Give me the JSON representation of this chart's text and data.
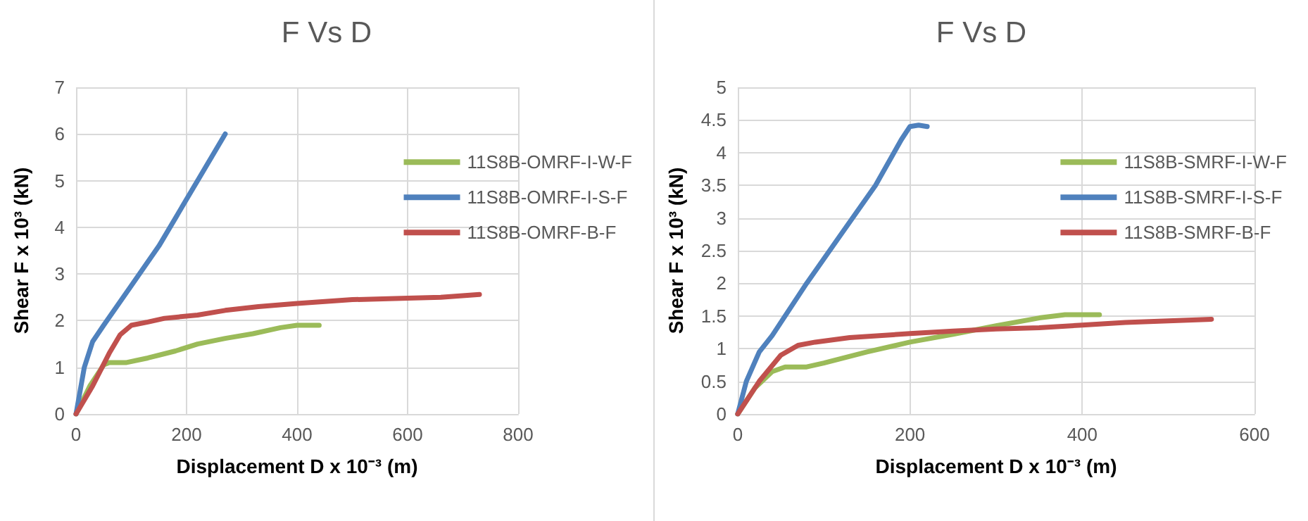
{
  "chart_data": [
    {
      "type": "line",
      "title": "F Vs D",
      "xlabel": "Displacement D x 10⁻³ (m)",
      "ylabel": "Shear F x 10³ (kN)",
      "xlim": [
        0,
        800
      ],
      "xticks": [
        0,
        200,
        400,
        600,
        800
      ],
      "ylim": [
        0,
        7
      ],
      "yticks": [
        0,
        1,
        2,
        3,
        4,
        5,
        6,
        7
      ],
      "grid": true,
      "legend": "right",
      "marker": "none",
      "line_style": "solid",
      "series": [
        {
          "name": "11S8B-OMRF-I-W-F",
          "color": "#9bbb59",
          "x": [
            0,
            25,
            50,
            60,
            90,
            130,
            180,
            220,
            270,
            320,
            370,
            400,
            440
          ],
          "values": [
            0,
            0.6,
            1.05,
            1.1,
            1.1,
            1.2,
            1.35,
            1.5,
            1.62,
            1.72,
            1.85,
            1.9,
            1.9
          ]
        },
        {
          "name": "11S8B-OMRF-I-S-F",
          "color": "#4f81bd",
          "x": [
            0,
            15,
            30,
            50,
            100,
            150,
            200,
            270
          ],
          "values": [
            0,
            1,
            1.55,
            1.9,
            2.75,
            3.6,
            4.6,
            6
          ]
        },
        {
          "name": "11S8B-OMRF-B-F",
          "color": "#c0504d",
          "x": [
            0,
            30,
            60,
            80,
            100,
            130,
            160,
            220,
            270,
            330,
            400,
            500,
            600,
            660,
            730
          ],
          "values": [
            0,
            0.6,
            1.3,
            1.7,
            1.9,
            1.97,
            2.05,
            2.12,
            2.22,
            2.3,
            2.37,
            2.45,
            2.48,
            2.5,
            2.56
          ]
        }
      ]
    },
    {
      "type": "line",
      "title": "F Vs D",
      "xlabel": "Displacement D x 10⁻³ (m)",
      "ylabel": "Shear F x 10³ (kN)",
      "xlim": [
        0,
        600
      ],
      "xticks": [
        0,
        200,
        400,
        600
      ],
      "ylim": [
        0,
        5
      ],
      "yticks": [
        0,
        0.5,
        1,
        1.5,
        2,
        2.5,
        3,
        3.5,
        4,
        4.5,
        5
      ],
      "grid": true,
      "legend": "right",
      "marker": "none",
      "line_style": "solid",
      "series": [
        {
          "name": "11S8B-SMRF-I-W-F",
          "color": "#9bbb59",
          "x": [
            0,
            20,
            40,
            55,
            80,
            100,
            150,
            200,
            250,
            300,
            350,
            380,
            420
          ],
          "values": [
            0,
            0.4,
            0.65,
            0.72,
            0.72,
            0.78,
            0.95,
            1.1,
            1.22,
            1.35,
            1.47,
            1.52,
            1.52
          ]
        },
        {
          "name": "11S8B-SMRF-I-S-F",
          "color": "#4f81bd",
          "x": [
            0,
            10,
            25,
            40,
            80,
            120,
            160,
            190,
            200,
            210,
            220
          ],
          "values": [
            0,
            0.5,
            0.95,
            1.2,
            2,
            2.75,
            3.5,
            4.2,
            4.4,
            4.42,
            4.4
          ]
        },
        {
          "name": "11S8B-SMRF-B-F",
          "color": "#c0504d",
          "x": [
            0,
            25,
            50,
            70,
            90,
            130,
            200,
            250,
            300,
            350,
            400,
            450,
            550
          ],
          "values": [
            0,
            0.5,
            0.9,
            1.05,
            1.1,
            1.17,
            1.23,
            1.27,
            1.3,
            1.32,
            1.36,
            1.4,
            1.45
          ]
        }
      ]
    }
  ]
}
